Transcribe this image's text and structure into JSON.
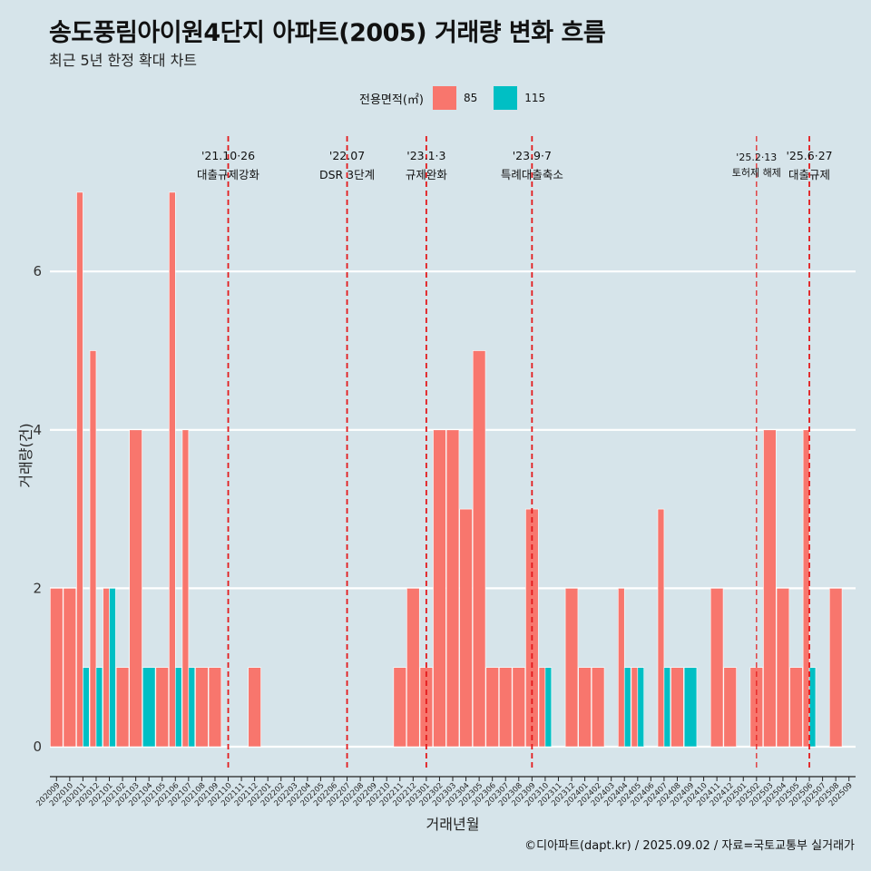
{
  "header": {
    "title": "송도풍림아이원4단지 아파트(2005) 거래량 변화 흐름",
    "subtitle": "최근 5년 한정 확대 차트"
  },
  "legend": {
    "title": "전용면적(㎡)",
    "items": [
      {
        "label": "85",
        "color": "#f8766d"
      },
      {
        "label": "115",
        "color": "#00bfc4"
      }
    ]
  },
  "caption": "©디아파트(dapt.kr) / 2025.09.02 / 자료=국토교통부 실거래가",
  "chart_data": {
    "type": "bar",
    "xlabel": "거래년월",
    "ylabel": "거래량(건)",
    "ylim": [
      0,
      7
    ],
    "yticks": [
      0,
      2,
      4,
      6
    ],
    "grid": "horizontal",
    "categories": [
      "202009",
      "202010",
      "202011",
      "202012",
      "202101",
      "202102",
      "202103",
      "202104",
      "202105",
      "202106",
      "202107",
      "202108",
      "202109",
      "202110",
      "202111",
      "202112",
      "202201",
      "202202",
      "202203",
      "202204",
      "202205",
      "202206",
      "202207",
      "202208",
      "202209",
      "202210",
      "202211",
      "202212",
      "202301",
      "202302",
      "202303",
      "202304",
      "202305",
      "202306",
      "202307",
      "202308",
      "202309",
      "202310",
      "202311",
      "202312",
      "202401",
      "202402",
      "202403",
      "202404",
      "202405",
      "202406",
      "202407",
      "202408",
      "202409",
      "202410",
      "202411",
      "202412",
      "202501",
      "202502",
      "202503",
      "202504",
      "202505",
      "202506",
      "202507",
      "202508",
      "202509"
    ],
    "series": [
      {
        "name": "85",
        "color": "#f8766d",
        "values": [
          2,
          2,
          7,
          5,
          2,
          1,
          4,
          0,
          1,
          7,
          4,
          1,
          1,
          0,
          0,
          1,
          0,
          0,
          0,
          0,
          0,
          0,
          0,
          0,
          0,
          0,
          1,
          2,
          1,
          4,
          4,
          3,
          5,
          1,
          1,
          1,
          3,
          1,
          0,
          2,
          1,
          1,
          0,
          2,
          1,
          0,
          3,
          1,
          0,
          0,
          2,
          1,
          0,
          1,
          4,
          2,
          1,
          4,
          0,
          2,
          0
        ]
      },
      {
        "name": "115",
        "color": "#00bfc4",
        "values": [
          0,
          0,
          1,
          1,
          2,
          0,
          0,
          1,
          0,
          1,
          1,
          0,
          0,
          0,
          0,
          0,
          0,
          0,
          0,
          0,
          0,
          0,
          0,
          0,
          0,
          0,
          0,
          0,
          0,
          0,
          0,
          0,
          0,
          0,
          0,
          0,
          0,
          1,
          0,
          0,
          0,
          0,
          0,
          1,
          1,
          0,
          1,
          0,
          1,
          0,
          0,
          0,
          0,
          0,
          0,
          0,
          0,
          1,
          0,
          0,
          0
        ]
      }
    ],
    "annotations": [
      {
        "month": "202110",
        "date": "'21.10·26",
        "text": "대출규제강화"
      },
      {
        "month": "202207",
        "date": "'22.07",
        "text": "DSR 3단계"
      },
      {
        "month": "202301",
        "date": "'23.1·3",
        "text": "규제완화"
      },
      {
        "month": "202309",
        "date": "'23.9·7",
        "text": "특례대출축소"
      },
      {
        "month": "202502",
        "date": "'25.2·13",
        "text": "토허제 해제"
      },
      {
        "month": "202506",
        "date": "'25.6·27",
        "text": "대출규제"
      }
    ]
  }
}
